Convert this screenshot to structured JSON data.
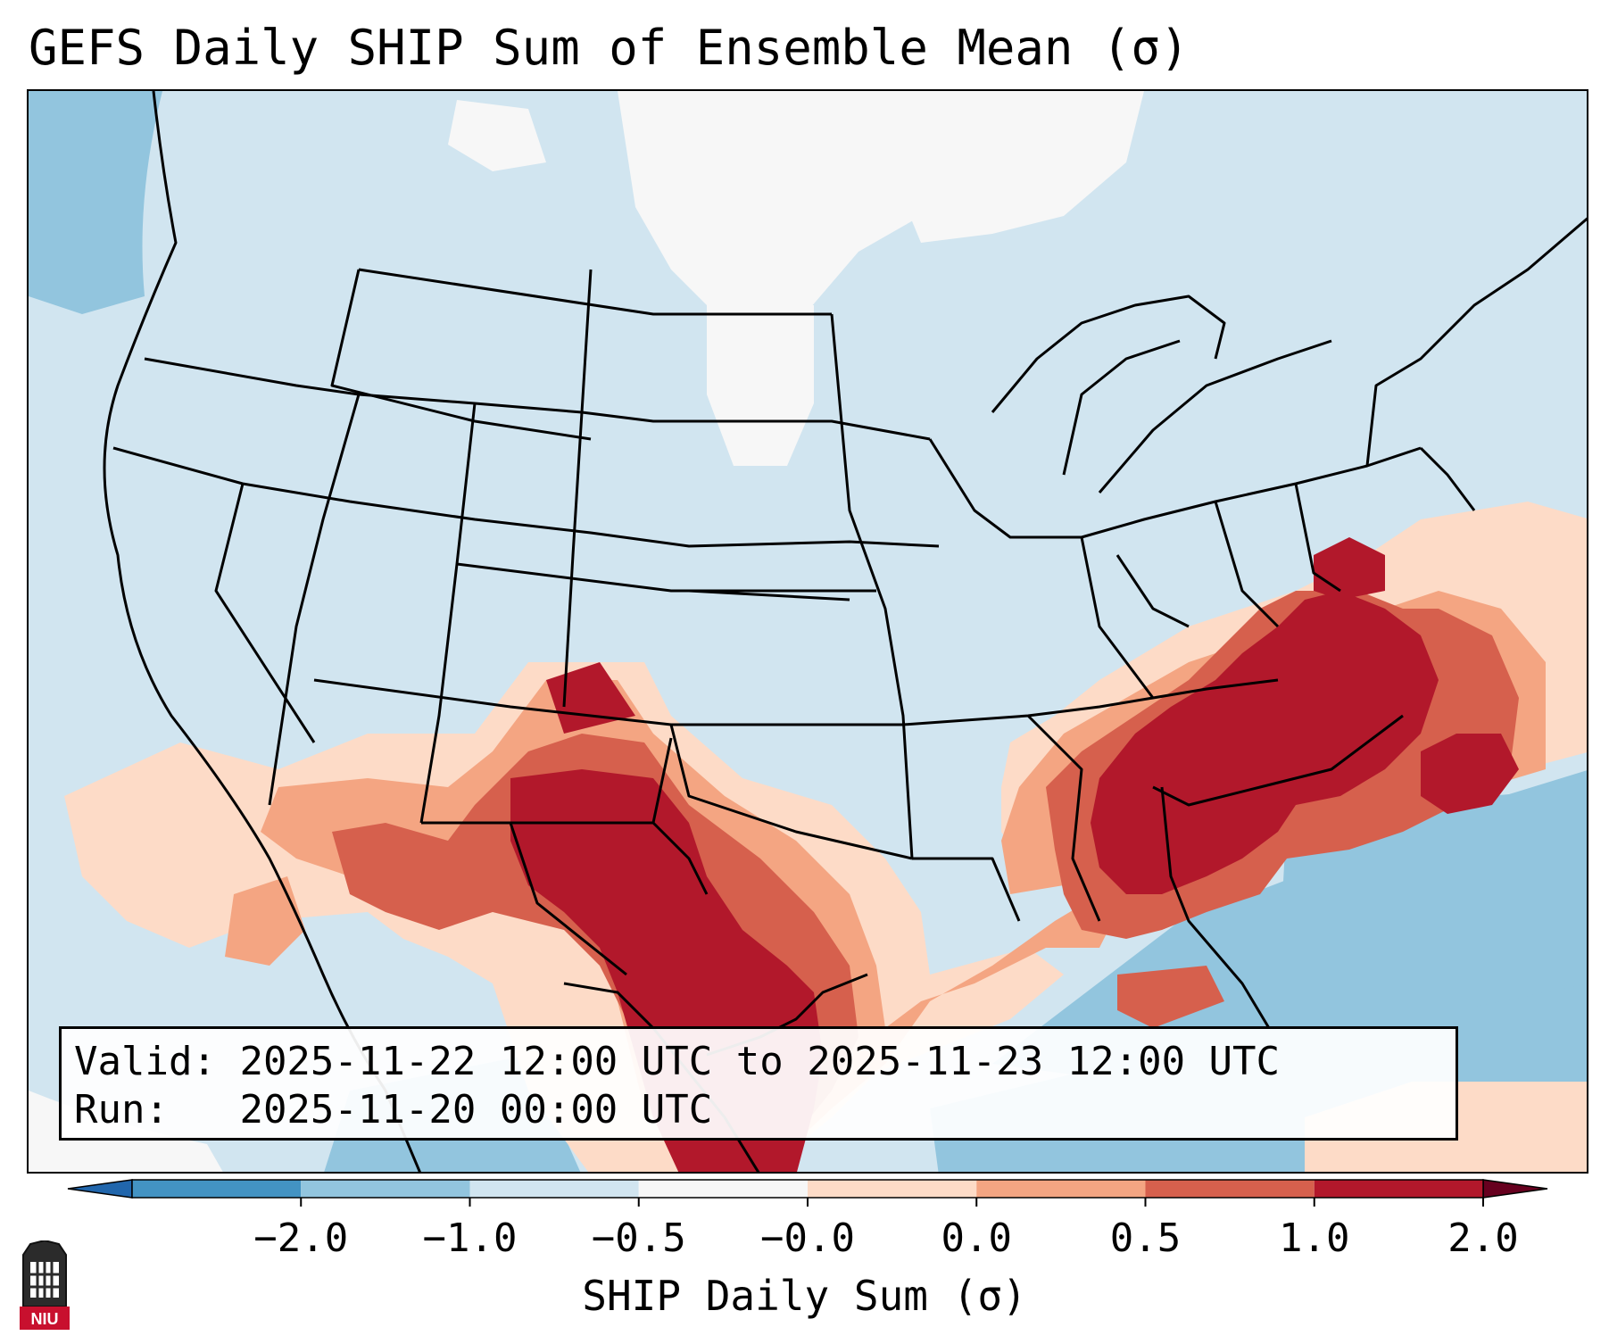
{
  "title": "GEFS Daily SHIP Sum of Ensemble Mean (σ)",
  "info": {
    "valid_label": "Valid:",
    "valid_value": "2025-11-22 12:00 UTC to 2025-11-23 12:00 UTC",
    "run_label": "Run:",
    "run_value": "2025-11-20 00:00 UTC"
  },
  "colorbar": {
    "label": "SHIP Daily Sum (σ)",
    "ticks": [
      "−2.0",
      "−1.0",
      "−0.5",
      "−0.0",
      "0.0",
      "0.5",
      "1.0",
      "2.0"
    ],
    "colors": [
      "#4393c3",
      "#92c5de",
      "#d1e5f0",
      "#f7f7f7",
      "#fddbc7",
      "#f4a582",
      "#d6604d",
      "#b2182b"
    ],
    "extend": "both"
  },
  "logo_text": "NIU",
  "map": {
    "region": "Contiguous United States",
    "field_colors": {
      "strong_high": "#b2182b",
      "high": "#d6604d",
      "moderate": "#f4a582",
      "low": "#fddbc7",
      "neutral": "#f7f7f7",
      "slightly_negative": "#d1e5f0",
      "negative": "#92c5de"
    }
  }
}
